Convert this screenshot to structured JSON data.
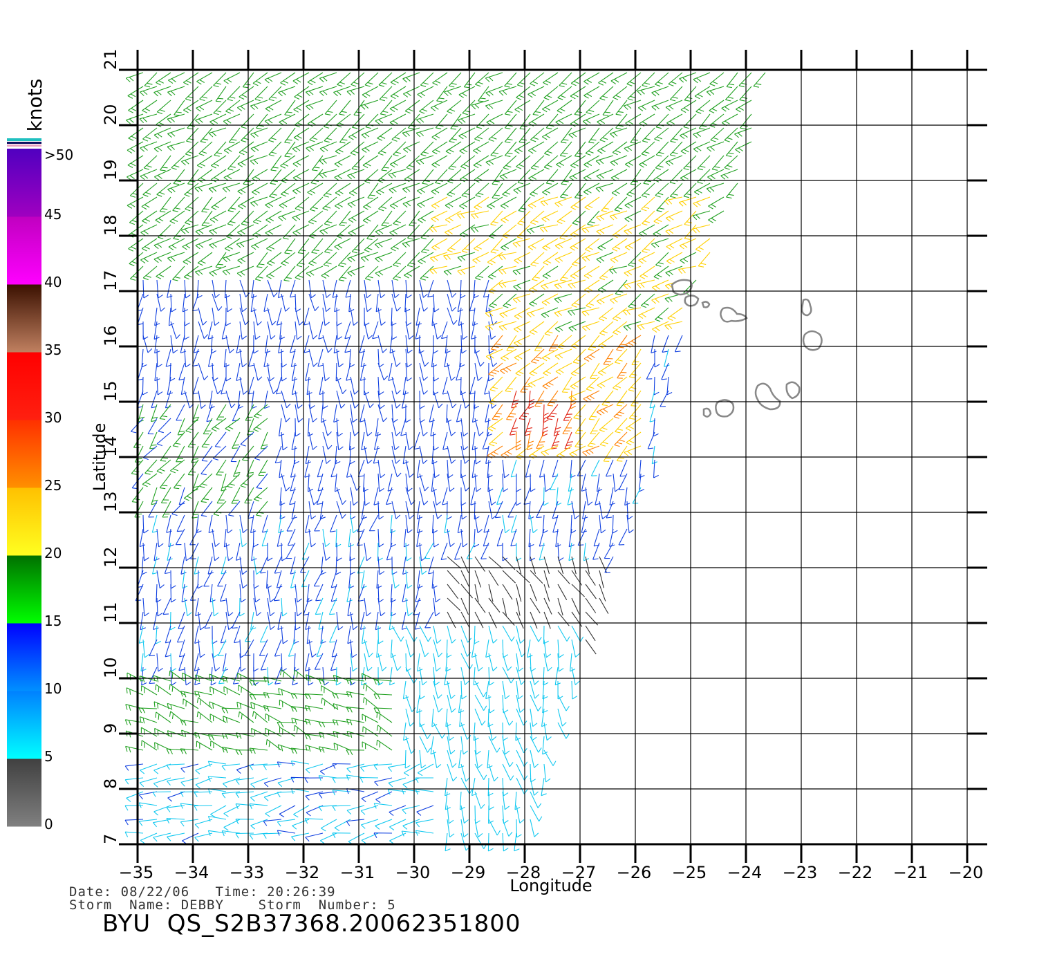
{
  "chart": {
    "type": "wind-vector-map",
    "xlabel": "Longitude",
    "ylabel": "Latitude",
    "xlim": [
      -35,
      -20
    ],
    "ylim": [
      7,
      21
    ],
    "xticks": [
      "-35",
      "-34",
      "-33",
      "-32",
      "-31",
      "-30",
      "-29",
      "-28",
      "-27",
      "-26",
      "-25",
      "-24",
      "-23",
      "-22",
      "-21",
      "-20"
    ],
    "yticks": [
      "7",
      "8",
      "9",
      "10",
      "11",
      "12",
      "13",
      "14",
      "15",
      "16",
      "17",
      "18",
      "19",
      "20",
      "21"
    ],
    "grid": true
  },
  "colorbar": {
    "title": "knots",
    "labels": [
      ">50",
      "45",
      "40",
      "35",
      "30",
      "25",
      "20",
      "15",
      "10",
      "5",
      "0"
    ],
    "bands": [
      {
        "from": 0,
        "to": 5,
        "top": "#404040",
        "bottom": "#808080"
      },
      {
        "from": 5,
        "to": 10,
        "top": "#0080ff",
        "bottom": "#00ffff"
      },
      {
        "from": 10,
        "to": 15,
        "top": "#0000ff",
        "bottom": "#0090ff"
      },
      {
        "from": 15,
        "to": 20,
        "top": "#007000",
        "bottom": "#00ff00"
      },
      {
        "from": 20,
        "to": 25,
        "top": "#ffc000",
        "bottom": "#ffff20"
      },
      {
        "from": 25,
        "to": 30,
        "top": "#ff3000",
        "bottom": "#ff9000"
      },
      {
        "from": 30,
        "to": 35,
        "top": "#ff0000",
        "bottom": "#ff2010"
      },
      {
        "from": 35,
        "to": 40,
        "top": "#3a1000",
        "bottom": "#c08060"
      },
      {
        "from": 40,
        "to": 45,
        "top": "#c000c0",
        "bottom": "#ff00ff"
      },
      {
        "from": 45,
        "to": 50,
        "top": "#5000c0",
        "bottom": "#a000c0"
      }
    ]
  },
  "swath": {
    "east_edge": [
      [
        21.0,
        -23.6
      ],
      [
        20.0,
        -23.8
      ],
      [
        19.0,
        -24.1
      ],
      [
        18.0,
        -24.5
      ],
      [
        17.0,
        -24.9
      ],
      [
        16.0,
        -25.2
      ],
      [
        15.0,
        -25.4
      ],
      [
        14.0,
        -25.6
      ],
      [
        13.0,
        -26.0
      ],
      [
        12.0,
        -26.4
      ],
      [
        11.0,
        -26.8
      ],
      [
        10.0,
        -27.1
      ],
      [
        9.0,
        -27.4
      ],
      [
        8.0,
        -27.7
      ],
      [
        7.0,
        -28.0
      ]
    ],
    "wind_zones": [
      {
        "lat": [
          17.3,
          21.0
        ],
        "lon": [
          -35,
          -23.6
        ],
        "speed": 17,
        "dir_deg": 235
      },
      {
        "lat": [
          16.3,
          18.8
        ],
        "lon": [
          -29.5,
          -24.5
        ],
        "speed": 21,
        "dir_deg": 240
      },
      {
        "lat": [
          14.2,
          16.4
        ],
        "lon": [
          -28.5,
          -25.8
        ],
        "speed": 24,
        "dir_deg": 230
      },
      {
        "lat": [
          14.4,
          15.4
        ],
        "lon": [
          -28.2,
          -27.0
        ],
        "speed": 30,
        "dir_deg": 200
      },
      {
        "lat": [
          11.2,
          17.3
        ],
        "lon": [
          -35,
          -28.5
        ],
        "speed": 12,
        "dir_deg": 180
      },
      {
        "lat": [
          13.0,
          15.0
        ],
        "lon": [
          -35,
          -32.5
        ],
        "speed": 16,
        "dir_deg": 215
      },
      {
        "lat": [
          8.0,
          13.0
        ],
        "lon": [
          -35,
          -28.0
        ],
        "speed": 11,
        "dir_deg": 190
      },
      {
        "lat": [
          10.2,
          12.3
        ],
        "lon": [
          -29.5,
          -26.5
        ],
        "speed": 3,
        "dir_deg": 150
      },
      {
        "lat": [
          7.0,
          11.0
        ],
        "lon": [
          -31.0,
          -27.0
        ],
        "speed": 7,
        "dir_deg": 170
      },
      {
        "lat": [
          8.6,
          10.0
        ],
        "lon": [
          -35,
          -30.2
        ],
        "speed": 17,
        "dir_deg": 290
      },
      {
        "lat": [
          7.0,
          8.6
        ],
        "lon": [
          -35,
          -29.5
        ],
        "speed": 9,
        "dir_deg": 260
      }
    ]
  },
  "info": {
    "date_line": "Date: 08/22/06   Time: 20:26:39",
    "storm_line": "Storm  Name: DEBBY    Storm  Number: 5",
    "file_label": "BYU  QS_S2B37368.20062351800"
  }
}
